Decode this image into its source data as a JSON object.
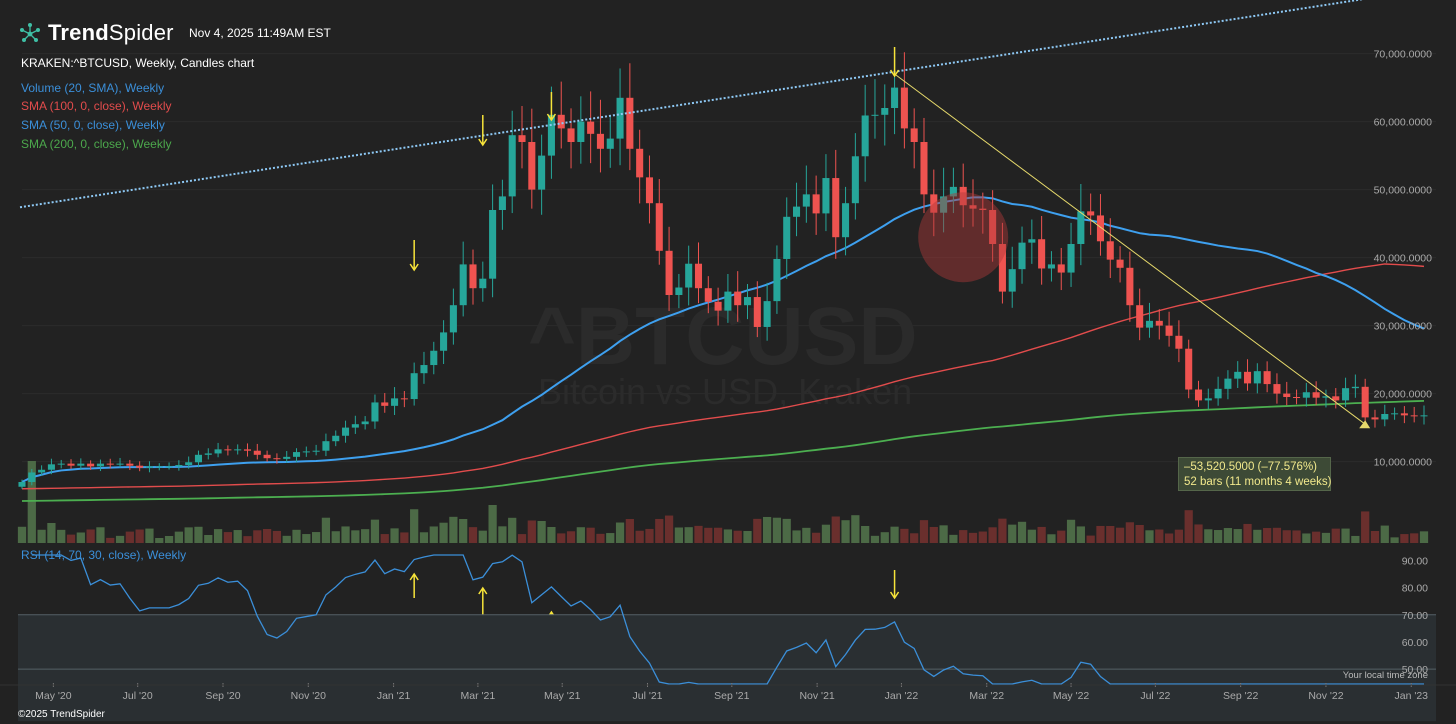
{
  "header": {
    "brand_trend": "Trend",
    "brand_spider": "Spider",
    "timestamp": "Nov 4, 2025 11:49AM EST",
    "symbol_line": "KRAKEN:^BTCUSD, Weekly, Candles chart",
    "indicators": [
      {
        "label": "Volume (20, SMA), Weekly",
        "color": "#3b8fd9"
      },
      {
        "label": "SMA (100, 0, close), Weekly",
        "color": "#e24c4c"
      },
      {
        "label": "SMA (50, 0, close), Weekly",
        "color": "#3b8fd9"
      },
      {
        "label": "SMA (200, 0, close), Weekly",
        "color": "#4ca84c"
      }
    ],
    "rsi_label": "RSI (14, 70, 30, close), Weekly"
  },
  "watermark": {
    "symbol": "^BTCUSD",
    "description": "Bitcoin vs USD, Kraken"
  },
  "footer": {
    "copyright": "©2025 TrendSpider",
    "local_time_note": "Your local time zone"
  },
  "colors": {
    "background": "#222222",
    "candle_up": "#26a69a",
    "candle_down": "#ef5350",
    "sma50": "#3ea0ef",
    "sma100": "#e24c4c",
    "sma200": "#4caf50",
    "rsi_line": "#3b8fd9",
    "trend_channel": "#8ec9f5",
    "downtrend_line": "#e6d96b",
    "arrow": "#f7e43a",
    "grid": "#2c2c2c"
  },
  "measurement": {
    "change": "–53,520.5000 (–77.576%)",
    "span": "52 bars (11 months 4 weeks)"
  },
  "chart_data": [
    {
      "type": "candlestick",
      "title": "KRAKEN:^BTCUSD, Weekly, Candles chart",
      "y_ticks": [
        "70,000.0000",
        "60,000.0000",
        "50,000.0000",
        "40,000.0000",
        "30,000.0000",
        "20,000.0000",
        "10,000.0000"
      ],
      "y_tick_values": [
        70000,
        60000,
        50000,
        40000,
        30000,
        20000,
        10000
      ],
      "ylim": [
        2000,
        72000
      ],
      "x_ticks": [
        "May '20",
        "Jul '20",
        "Sep '20",
        "Nov '20",
        "Jan '21",
        "Mar '21",
        "May '21",
        "Jul '21",
        "Sep '21",
        "Nov '21",
        "Jan '22",
        "Mar '22",
        "May '22",
        "Jul '22",
        "Sep '22",
        "Nov '22",
        "Jan '23"
      ],
      "close": [
        7000,
        8400,
        8800,
        9600,
        9700,
        9400,
        9700,
        9300,
        9700,
        9600,
        9700,
        9400,
        9100,
        9300,
        9300,
        9300,
        9500,
        9900,
        11000,
        11200,
        11800,
        11700,
        11800,
        11600,
        11000,
        10500,
        10400,
        10700,
        11400,
        11500,
        11600,
        13000,
        13800,
        15000,
        15500,
        15900,
        18700,
        18200,
        19300,
        19200,
        23000,
        24200,
        26300,
        29000,
        33000,
        39000,
        35500,
        36900,
        47000,
        49000,
        58000,
        57000,
        50000,
        55000,
        61000,
        59000,
        57000,
        60000,
        58200,
        56000,
        57500,
        63500,
        56000,
        51800,
        48000,
        41000,
        34500,
        35600,
        39100,
        35500,
        33500,
        32200,
        35000,
        33000,
        34200,
        29800,
        33600,
        39800,
        46000,
        47500,
        49300,
        46500,
        51700,
        43000,
        48000,
        54900,
        60900,
        61000,
        62000,
        65000,
        59000,
        57000,
        49300,
        46600,
        49000,
        50400,
        47700,
        47200,
        47000,
        42000,
        35000,
        38300,
        42200,
        42700,
        38400,
        39000,
        37800,
        42000,
        46800,
        46200,
        42400,
        39700,
        38500,
        33000,
        29700,
        30700,
        30000,
        28500,
        26600,
        20600,
        19000,
        19300,
        20700,
        22200,
        23200,
        21500,
        23300,
        21400,
        20000,
        19500,
        19400,
        20200,
        19400,
        19600,
        19000,
        20800,
        21000,
        16500,
        16200,
        17000,
        17100,
        16800,
        16700,
        16800
      ]
    },
    {
      "type": "line",
      "title": "RSI (14, 70, 30, close), Weekly",
      "y_ticks": [
        "90.00",
        "80.00",
        "70.00",
        "60.00",
        "50.00"
      ],
      "y_tick_values": [
        90,
        80,
        70,
        60,
        50
      ],
      "ylim": [
        46,
        92
      ],
      "bands": [
        30,
        70
      ]
    }
  ]
}
